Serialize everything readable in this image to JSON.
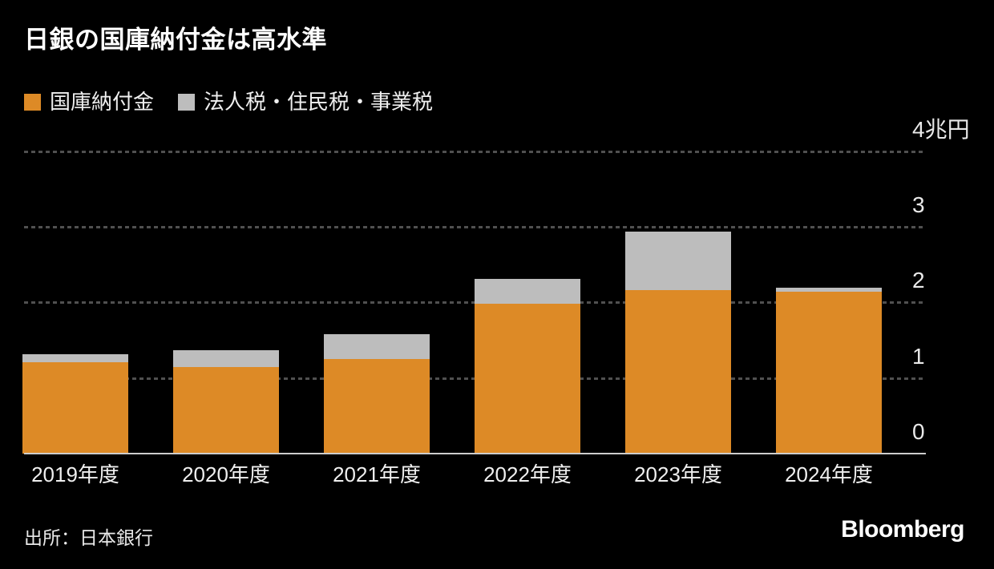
{
  "header": {
    "title": "日銀の国庫納付金は高水準"
  },
  "legend": {
    "items": [
      {
        "label": "国庫納付金",
        "color": "#DD8A26"
      },
      {
        "label": "法人税・住民税・事業税",
        "color": "#BDBDBD"
      }
    ]
  },
  "chart_data": {
    "type": "bar",
    "stacked": true,
    "title": "日銀の国庫納付金は高水準",
    "categories": [
      "2019年度",
      "2020年度",
      "2021年度",
      "2022年度",
      "2023年度",
      "2024年度"
    ],
    "series": [
      {
        "name": "国庫納付金",
        "key": "payment",
        "color": "#DD8A26",
        "values": [
          1.21,
          1.14,
          1.25,
          1.98,
          2.16,
          2.14
        ]
      },
      {
        "name": "法人税・住民税・事業税",
        "key": "taxes",
        "color": "#BDBDBD",
        "values": [
          0.1,
          0.23,
          0.33,
          0.33,
          0.78,
          0.06
        ]
      }
    ],
    "unit": "兆円",
    "xlabel": "",
    "ylabel": "",
    "ylim": [
      0,
      4.25
    ],
    "yticks": [
      {
        "value": 0,
        "label": "0"
      },
      {
        "value": 1,
        "label": "1"
      },
      {
        "value": 2,
        "label": "2"
      },
      {
        "value": 3,
        "label": "3"
      },
      {
        "value": 4,
        "label": "4兆円"
      }
    ],
    "grid": "horizontal-dashed",
    "legend_position": "top-left"
  },
  "colors": {
    "background": "#000000",
    "gridline": "#505050",
    "axis_line": "#CDCDCD",
    "title_text": "#FFFFFF",
    "tick_text": "#E9E9E9"
  },
  "footer": {
    "source": "出所：日本銀行",
    "logo": "Bloomberg"
  }
}
